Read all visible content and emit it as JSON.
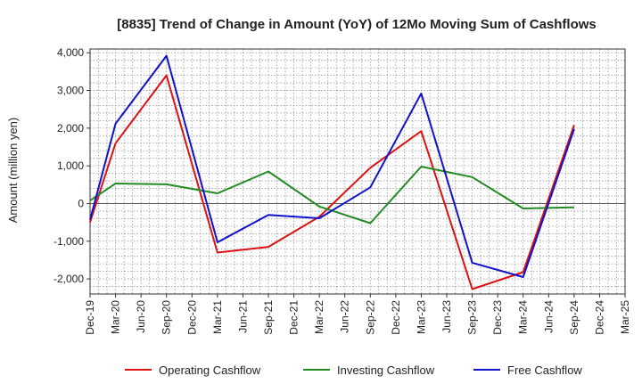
{
  "chart_data": {
    "type": "line",
    "title": "[8835]  Trend of Change in Amount (YoY) of 12Mo Moving Sum of Cashflows",
    "xlabel": "",
    "ylabel": "Amount (million yen)",
    "ylim": [
      -2400,
      4100
    ],
    "yticks": [
      -2000,
      -1000,
      0,
      1000,
      2000,
      3000,
      4000
    ],
    "ytick_labels": [
      "-2,000",
      "-1,000",
      "0",
      "1,000",
      "2,000",
      "3,000",
      "4,000"
    ],
    "categories": [
      "Dec-19",
      "Mar-20",
      "Jun-20",
      "Sep-20",
      "Dec-20",
      "Mar-21",
      "Jun-21",
      "Sep-21",
      "Dec-21",
      "Mar-22",
      "Jun-22",
      "Sep-22",
      "Dec-22",
      "Mar-23",
      "Jun-23",
      "Sep-23",
      "Dec-23",
      "Mar-24",
      "Jun-24",
      "Sep-24",
      "Dec-24",
      "Mar-25"
    ],
    "x": [
      "Dec-19",
      "Mar-20",
      "Sep-20",
      "Mar-21",
      "Sep-21",
      "Mar-22",
      "Sep-22",
      "Mar-23",
      "Sep-23",
      "Mar-24",
      "Sep-24"
    ],
    "series": [
      {
        "name": "Operating Cashflow",
        "color": "#dd1111",
        "values": [
          -500,
          1600,
          3400,
          -1300,
          -1150,
          -350,
          950,
          1920,
          -2270,
          -1820,
          2080
        ]
      },
      {
        "name": "Investing Cashflow",
        "color": "#228b22",
        "values": [
          80,
          530,
          510,
          270,
          850,
          -80,
          -520,
          980,
          700,
          -130,
          -100
        ]
      },
      {
        "name": "Free Cashflow",
        "color": "#1111cc",
        "values": [
          -430,
          2120,
          3920,
          -1030,
          -300,
          -390,
          430,
          2920,
          -1570,
          -1950,
          1980
        ]
      }
    ],
    "grid": true,
    "legend": "bottom"
  }
}
